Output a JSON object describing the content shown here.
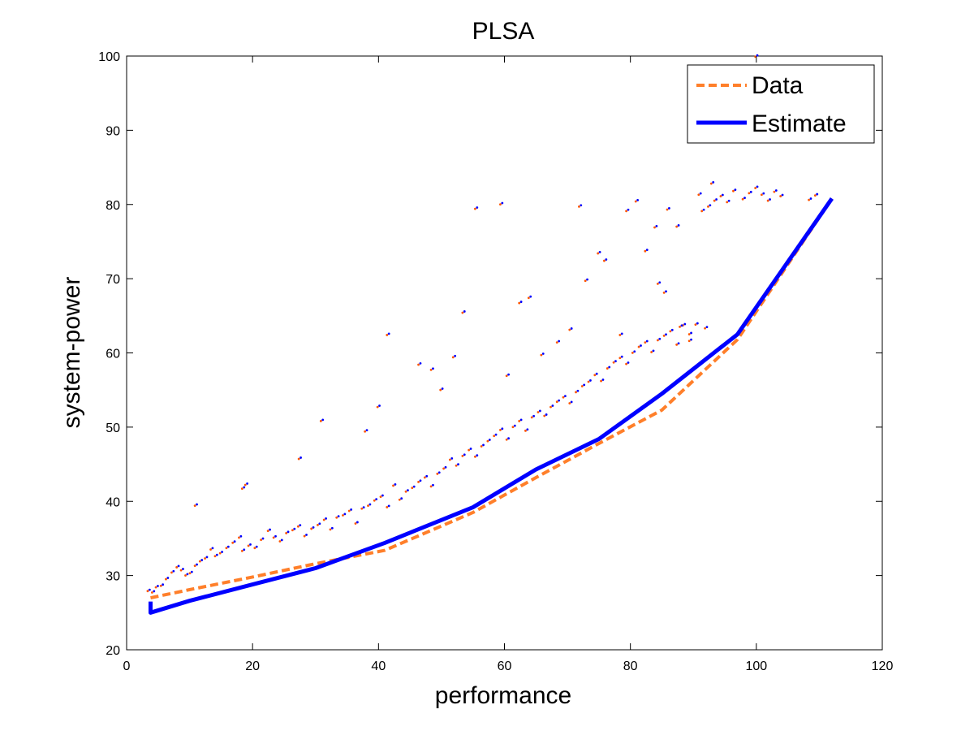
{
  "chart_data": {
    "type": "scatter",
    "title": "PLSA",
    "xlabel": "performance",
    "ylabel": "system-power",
    "xlim": [
      0,
      120
    ],
    "ylim": [
      20,
      100
    ],
    "xticks": [
      0,
      20,
      40,
      60,
      80,
      100,
      120
    ],
    "yticks": [
      20,
      30,
      40,
      50,
      60,
      70,
      80,
      90,
      100
    ],
    "grid": false,
    "legend_position": "top-right",
    "colors": {
      "data": "#ff7f2a",
      "estimate": "#0000ff",
      "scatter_a": "#ff5500",
      "scatter_b": "#0000ff"
    },
    "series": [
      {
        "name": "Data",
        "style": "dashed-line",
        "x": [
          3.8,
          3.8,
          10,
          20,
          30,
          41,
          55,
          65,
          75,
          85,
          97,
          112
        ],
        "y": [
          27,
          27,
          28.1,
          29.8,
          31.6,
          33.4,
          38.5,
          43.2,
          47.8,
          52.3,
          61.8,
          80.8
        ]
      },
      {
        "name": "Estimate",
        "style": "solid-line",
        "x": [
          3.8,
          3.8,
          10,
          20,
          30,
          41,
          55,
          65,
          75,
          85,
          97,
          112
        ],
        "y": [
          26.5,
          25,
          26.6,
          28.8,
          31,
          34.4,
          39.2,
          44.3,
          48.4,
          54.5,
          62.5,
          80.8
        ]
      },
      {
        "name": "",
        "style": "scatter",
        "x": [
          3.5,
          4.2,
          4.8,
          5.6,
          6.4,
          7.3,
          8.1,
          8.8,
          9.5,
          10.2,
          11,
          11.8,
          12.6,
          13.5,
          14.2,
          15,
          16,
          17,
          18,
          18.5,
          19.5,
          20.5,
          21.5,
          22.6,
          23.5,
          24.5,
          25.5,
          26.5,
          27.4,
          28.4,
          29.5,
          30.5,
          31.5,
          32.5,
          33.5,
          34.5,
          35.5,
          36.5,
          37.5,
          38.5,
          39.5,
          40.5,
          41.5,
          42.5,
          43.5,
          44.5,
          45.5,
          46.5,
          47.5,
          48.5,
          49.5,
          50.5,
          51.5,
          52.5,
          53.5,
          54.5,
          55.5,
          56.5,
          57.5,
          58.5,
          59.5,
          60.5,
          61.5,
          62.5,
          63.5,
          64.5,
          65.5,
          66.5,
          67.5,
          68.5,
          69.5,
          70.5,
          71.5,
          72.5,
          73.5,
          74.5,
          75.5,
          76.5,
          77.5,
          78.5,
          79.5,
          80.5,
          81.5,
          82.5,
          83.5,
          84.5,
          85.5,
          86.5,
          87.5,
          88.5,
          89.5,
          90.5,
          91.5,
          92.5,
          93.5,
          94.5,
          95.5,
          96.5,
          98,
          99,
          100,
          101,
          102,
          103,
          104,
          108.5,
          109.5,
          11,
          18.5,
          19,
          31,
          27.5,
          38,
          40,
          41.5,
          55.5,
          59.5,
          72,
          75,
          79.5,
          81,
          84,
          86,
          87.5,
          91,
          93,
          100,
          52,
          53.5,
          62.5,
          64,
          46.5,
          48.5,
          50,
          60.5,
          66,
          68.5,
          70.5,
          73,
          76,
          78.5,
          82.5,
          84.5,
          85.5,
          88,
          89.5,
          92
        ],
        "y": [
          28,
          27.8,
          28.5,
          28.7,
          29.6,
          30.5,
          31.2,
          30.8,
          30.1,
          30.4,
          31.4,
          32,
          32.4,
          33.6,
          32.7,
          33.1,
          33.8,
          34.5,
          35.2,
          33.4,
          34.1,
          33.8,
          34.9,
          36.1,
          35.2,
          34.7,
          35.8,
          36.2,
          36.7,
          35.4,
          36.4,
          36.9,
          37.6,
          36.3,
          37.9,
          38.2,
          38.8,
          37.1,
          39.1,
          39.5,
          40.2,
          40.7,
          39.3,
          42.2,
          40.3,
          41.4,
          41.9,
          42.7,
          43.3,
          42.1,
          43.8,
          44.5,
          45.7,
          44.9,
          46.2,
          47,
          46.1,
          47.5,
          48.2,
          48.9,
          49.7,
          48.4,
          50.1,
          50.9,
          49.6,
          51.4,
          52.1,
          51.6,
          52.8,
          53.5,
          54.1,
          53.3,
          54.8,
          55.6,
          56.2,
          57.1,
          56.3,
          58,
          58.8,
          59.4,
          58.6,
          60.1,
          60.9,
          61.5,
          60.2,
          61.8,
          62.4,
          63,
          61.2,
          63.8,
          62.6,
          63.9,
          79.2,
          79.8,
          80.6,
          81.2,
          80.4,
          81.9,
          80.8,
          81.6,
          82.3,
          81.4,
          80.6,
          81.8,
          81.2,
          80.7,
          81.3,
          39.5,
          41.8,
          42.3,
          50.9,
          45.8,
          49.5,
          52.8,
          62.5,
          79.5,
          80.1,
          79.8,
          73.5,
          79.2,
          80.5,
          77,
          79.4,
          77.1,
          81.4,
          82.9,
          100,
          59.5,
          65.5,
          66.8,
          67.5,
          58.5,
          57.8,
          55.1,
          57,
          59.8,
          61.5,
          63.2,
          69.8,
          72.5,
          62.5,
          73.8,
          69.4,
          68.2,
          63.6,
          61.7,
          63.4
        ]
      }
    ]
  },
  "legend": {
    "data_label": "Data",
    "estimate_label": "Estimate"
  }
}
